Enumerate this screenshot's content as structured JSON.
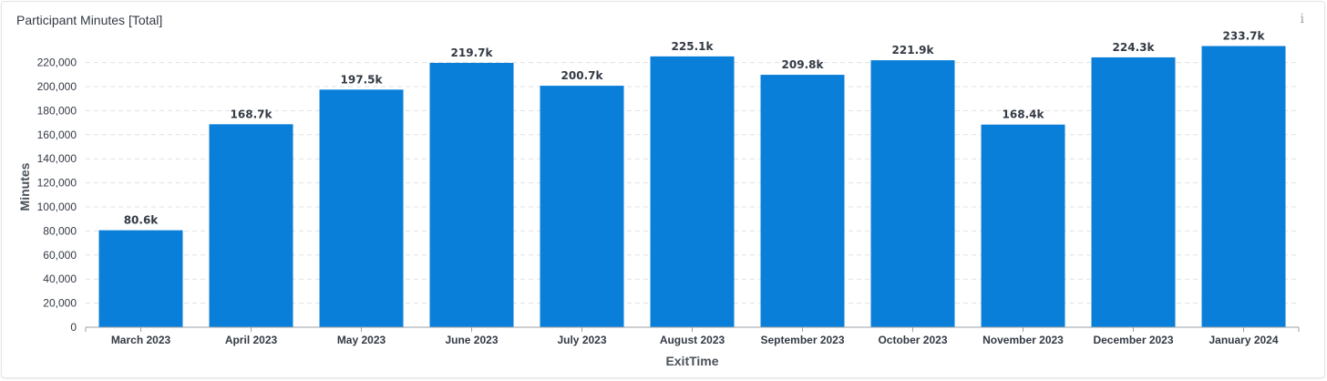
{
  "title": "Participant Minutes [Total]",
  "info_icon": "info-icon",
  "colors": {
    "bar": "#0a7fd9",
    "grid": "#e0e0e0",
    "axis": "#9aa0a6"
  },
  "chart_data": {
    "type": "bar",
    "categories": [
      "March 2023",
      "April 2023",
      "May 2023",
      "June 2023",
      "July 2023",
      "August 2023",
      "September 2023",
      "October 2023",
      "November 2023",
      "December 2023",
      "January 2024"
    ],
    "values": [
      80600,
      168700,
      197500,
      219700,
      200700,
      225100,
      209800,
      221900,
      168400,
      224300,
      233700
    ],
    "data_labels": [
      "80.6k",
      "168.7k",
      "197.5k",
      "219.7k",
      "200.7k",
      "225.1k",
      "209.8k",
      "221.9k",
      "168.4k",
      "224.3k",
      "233.7k"
    ],
    "yticks": [
      "0",
      "20,000",
      "40,000",
      "60,000",
      "80,000",
      "100,000",
      "120,000",
      "140,000",
      "160,000",
      "180,000",
      "200,000",
      "220,000"
    ],
    "xlabel": "ExitTime",
    "ylabel": "Minutes",
    "ylim": [
      0,
      240000
    ],
    "grid": true
  }
}
